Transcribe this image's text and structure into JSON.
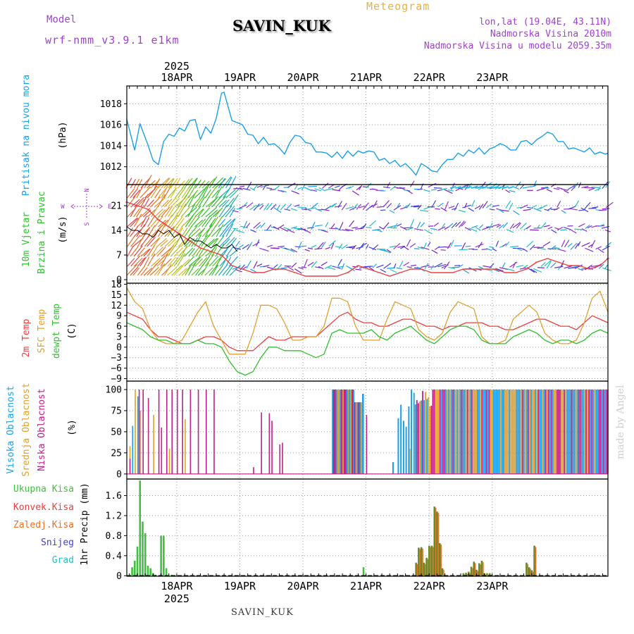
{
  "header": {
    "model_label": "Model",
    "model_name": "wrf-nmm_v3.9.1 e1km",
    "title": "SAVIN_KUK",
    "meteogram": "Meteogram",
    "lonlat": "lon,lat (19.04E, 43.11N)",
    "elevation": "Nadmorska Visina 2010m",
    "elevation_model": "Nadmorska Visina u modelu 2059.35m",
    "year": "2025"
  },
  "footer": {
    "station": "SAVIN_KUK",
    "year": "2025",
    "made_by": "made by Angel"
  },
  "days": [
    "18APR",
    "19APR",
    "20APR",
    "21APR",
    "22APR",
    "23APR"
  ],
  "colors": {
    "pressure": "#1aa0e8",
    "temp2m": "#e84040",
    "sfc": "#e0a030",
    "dewpt": "#30c030",
    "high_cloud": "#1aa0e8",
    "mid_cloud": "#e0a030",
    "low_cloud": "#c0208a",
    "total_precip": "#40c040",
    "conv_precip": "#e84040",
    "frozen": "#e87020",
    "snow": "#4040d0",
    "hail": "#20c0c0"
  },
  "legend": {
    "pressure": [
      "Pritisak na nivou mora",
      "(hPa)"
    ],
    "wind": [
      "10m Vjetar",
      "Brzina i Pravac",
      "(m/s)"
    ],
    "compass": [
      "N",
      "S",
      "W",
      "E"
    ],
    "temp": [
      "2m Temp",
      "SFC Temp",
      "dewpt Temp",
      "(C)"
    ],
    "cloud": [
      "Visoka Oblacnost",
      "Srednja Oblacnost",
      "Niska Oblacnost",
      "(%)"
    ],
    "precip": [
      "Ukupna Kisa",
      "Konvek.Kisa",
      "Zaledj.Kisa",
      "Snijeg",
      "Grad",
      "1hr Precip (mm)"
    ]
  },
  "chart_data": [
    {
      "type": "line",
      "panel": "pressure",
      "ylabel": "(hPa)",
      "yticks": [
        1012,
        1014,
        1016,
        1018
      ],
      "ylim": [
        1010.3,
        1019.7
      ],
      "x_hours": [
        0,
        3,
        5,
        8,
        10,
        12,
        14,
        16,
        18,
        20,
        22,
        24,
        26,
        28,
        30,
        32,
        34,
        36,
        37,
        38,
        40,
        42,
        44,
        46,
        48,
        50,
        52,
        54,
        56,
        58,
        60,
        62,
        64,
        66,
        68,
        70,
        72,
        74,
        76,
        78,
        80,
        82,
        84,
        86,
        88,
        90,
        92,
        94,
        96,
        98,
        100,
        102,
        104,
        106,
        108,
        110,
        112,
        114,
        116,
        118,
        120,
        122,
        124,
        126,
        128,
        130,
        132,
        134,
        136,
        138,
        140,
        142,
        144,
        146,
        148,
        150,
        152,
        154,
        156,
        158,
        160,
        162,
        164,
        166,
        168,
        170,
        172,
        174,
        176,
        178,
        180,
        182,
        183
      ],
      "values": [
        1016.5,
        1013.6,
        1016.1,
        1014.1,
        1012.6,
        1012.2,
        1014.4,
        1015.1,
        1014.9,
        1015.7,
        1015.4,
        1016.4,
        1016.5,
        1014.6,
        1015.8,
        1015.2,
        1016.6,
        1019.0,
        1019.1,
        1018.2,
        1016.4,
        1016.2,
        1016.0,
        1015.1,
        1015.0,
        1014.2,
        1014.8,
        1014.1,
        1014.2,
        1013.8,
        1013.2,
        1014.3,
        1015.0,
        1014.9,
        1014.3,
        1014.2,
        1013.4,
        1013.4,
        1013.3,
        1012.9,
        1013.4,
        1012.8,
        1013.5,
        1013.0,
        1013.5,
        1013.3,
        1013.5,
        1013.4,
        1012.6,
        1012.8,
        1012.3,
        1012.6,
        1012.0,
        1012.3,
        1011.8,
        1011.2,
        1012.3,
        1012.0,
        1011.6,
        1011.5,
        1012.2,
        1012.7,
        1012.7,
        1013.3,
        1013.0,
        1013.6,
        1013.3,
        1013.8,
        1013.2,
        1013.7,
        1013.9,
        1014.2,
        1014.0,
        1013.6,
        1013.6,
        1014.4,
        1014.5,
        1014.1,
        1014.6,
        1014.9,
        1015.3,
        1015.1,
        1014.4,
        1014.4,
        1013.7,
        1013.8,
        1013.6,
        1013.4,
        1013.8,
        1013.2,
        1013.4,
        1013.2,
        1013.3
      ],
      "color": "#1aa0e8"
    },
    {
      "type": "line",
      "panel": "wind",
      "ylabel": "(m/s)",
      "yticks": [
        0,
        7,
        14,
        21
      ],
      "ylim": [
        -1,
        27
      ],
      "series": [
        {
          "name": "",
          "color": "#e84040",
          "x_hours": [
            0,
            4,
            8,
            12,
            16,
            20,
            24,
            28,
            32,
            36,
            40,
            44,
            48,
            52,
            56,
            60,
            64,
            68,
            72,
            76,
            80,
            84,
            88,
            92,
            96,
            100,
            104,
            108,
            112,
            116,
            120,
            124,
            128,
            132,
            136,
            140,
            144,
            148,
            152,
            156,
            160,
            164,
            168,
            172,
            176,
            180,
            183
          ],
          "values": [
            22,
            21,
            20,
            17,
            15,
            13,
            11,
            9,
            8,
            7,
            4,
            3,
            2,
            2,
            3,
            3,
            2,
            1,
            1,
            1,
            1,
            2,
            4,
            3,
            2,
            1,
            2,
            3,
            3,
            2,
            2,
            2,
            3,
            3,
            3,
            3,
            2,
            2,
            3,
            5,
            6,
            5,
            4,
            4,
            3,
            4,
            6
          ]
        },
        {
          "name": "",
          "color": "#000000",
          "x_hours": [
            0,
            2,
            4,
            6,
            8,
            10,
            12,
            14,
            16,
            18,
            20,
            22,
            24,
            26,
            28,
            30,
            32,
            34,
            36,
            38,
            40,
            42
          ],
          "values": [
            15,
            14,
            14,
            13,
            13,
            12,
            14,
            13,
            14,
            12,
            13,
            10,
            12,
            11,
            11,
            10,
            9,
            10,
            9,
            9,
            10,
            8
          ]
        }
      ]
    },
    {
      "type": "line",
      "panel": "temperature",
      "ylabel": "(C)",
      "yticks": [
        -9,
        -6,
        -3,
        0,
        3,
        6,
        9,
        12,
        15,
        18
      ],
      "ylim": [
        -9.7,
        18.3
      ],
      "series": [
        {
          "name": "2m Temp",
          "color": "#e84040",
          "x_hours": [
            0,
            3,
            6,
            9,
            12,
            15,
            18,
            21,
            24,
            27,
            30,
            33,
            36,
            39,
            42,
            45,
            48,
            51,
            54,
            57,
            60,
            63,
            66,
            69,
            72,
            75,
            78,
            81,
            84,
            87,
            90,
            93,
            96,
            99,
            102,
            105,
            108,
            111,
            114,
            117,
            120,
            123,
            126,
            129,
            132,
            135,
            138,
            141,
            144,
            147,
            150,
            153,
            156,
            159,
            162,
            165,
            168,
            171,
            174,
            177,
            180,
            183
          ],
          "values": [
            10,
            9,
            8,
            5,
            3,
            3,
            2,
            1,
            1,
            2,
            3,
            3,
            2,
            0,
            -1,
            -1,
            -1,
            1,
            3,
            2,
            2,
            3,
            3,
            3,
            3,
            5,
            7,
            9,
            10,
            8,
            7,
            7,
            6,
            6,
            7,
            8,
            8,
            7,
            6,
            6,
            5,
            6,
            6,
            7,
            7,
            7,
            6,
            6,
            5,
            5,
            6,
            7,
            8,
            8,
            7,
            6,
            6,
            5,
            7,
            9,
            8,
            7
          ]
        },
        {
          "name": "SFC Temp",
          "color": "#e0a030",
          "x_hours": [
            0,
            3,
            6,
            9,
            12,
            15,
            18,
            21,
            24,
            27,
            30,
            33,
            36,
            39,
            42,
            45,
            48,
            51,
            54,
            57,
            60,
            63,
            66,
            69,
            72,
            75,
            78,
            81,
            84,
            87,
            90,
            93,
            96,
            99,
            102,
            105,
            108,
            111,
            114,
            117,
            120,
            123,
            126,
            129,
            132,
            135,
            138,
            141,
            144,
            147,
            150,
            153,
            156,
            159,
            162,
            165,
            168,
            171,
            174,
            177,
            180,
            183
          ],
          "values": [
            17,
            13,
            11,
            5,
            2,
            1,
            1,
            2,
            6,
            10,
            13,
            6,
            2,
            -2,
            -2,
            -2,
            4,
            12,
            12,
            11,
            7,
            2,
            2,
            3,
            3,
            6,
            14,
            14,
            13,
            6,
            2,
            2,
            2,
            8,
            13,
            12,
            11,
            5,
            3,
            2,
            4,
            10,
            13,
            12,
            11,
            3,
            1,
            1,
            2,
            8,
            10,
            12,
            10,
            4,
            2,
            1,
            1,
            2,
            7,
            14,
            16,
            10
          ]
        },
        {
          "name": "dewpt Temp",
          "color": "#30c030",
          "x_hours": [
            0,
            3,
            6,
            9,
            12,
            15,
            18,
            21,
            24,
            27,
            30,
            33,
            36,
            39,
            42,
            45,
            48,
            51,
            54,
            57,
            60,
            63,
            66,
            69,
            72,
            75,
            78,
            81,
            84,
            87,
            90,
            93,
            96,
            99,
            102,
            105,
            108,
            111,
            114,
            117,
            120,
            123,
            126,
            129,
            132,
            135,
            138,
            141,
            144,
            147,
            150,
            153,
            156,
            159,
            162,
            165,
            168,
            171,
            174,
            177,
            180,
            183
          ],
          "values": [
            7,
            6,
            5,
            3,
            2,
            2,
            1,
            1,
            1,
            2,
            1,
            1,
            0,
            -4,
            -7,
            -8,
            -7,
            -3,
            0,
            0,
            -1,
            -1,
            -1,
            -2,
            -3,
            -2,
            4,
            5,
            4,
            4,
            4,
            5,
            3,
            2,
            4,
            5,
            6,
            4,
            2,
            1,
            3,
            5,
            6,
            6,
            5,
            2,
            1,
            1,
            1,
            3,
            4,
            5,
            4,
            2,
            1,
            2,
            2,
            1,
            2,
            4,
            5,
            4
          ]
        }
      ]
    },
    {
      "type": "bar",
      "panel": "clouds",
      "ylabel": "(%)",
      "yticks": [
        0,
        25,
        50,
        75,
        100
      ],
      "ylim": [
        -6,
        110
      ],
      "series": [
        {
          "name": "Visoka Oblacnost",
          "color": "#1aa0e8"
        },
        {
          "name": "Srednja Oblacnost",
          "color": "#e0a030"
        },
        {
          "name": "Niska Oblacnost",
          "color": "#c0208a"
        }
      ]
    },
    {
      "type": "bar",
      "panel": "precipitation",
      "ylabel": "1hr Precip (mm)",
      "yticks": [
        0,
        0.4,
        0.8,
        1.2,
        1.6
      ],
      "ylim": [
        -0.01,
        1.93
      ],
      "series": [
        {
          "name": "Ukupna Kisa",
          "color": "#40c040",
          "x_hours": [
            2,
            3,
            4,
            5,
            6,
            7,
            8,
            9,
            10,
            11,
            13,
            14,
            15,
            17,
            90,
            110,
            111,
            112,
            113,
            114,
            115,
            116,
            117,
            118,
            119,
            120,
            128,
            129,
            130,
            131,
            132,
            133,
            134,
            135,
            136,
            137,
            138,
            152,
            153,
            154,
            155
          ],
          "values": [
            0.17,
            0.3,
            0.58,
            1.9,
            1.08,
            0.85,
            0.2,
            0.15,
            0.05,
            0.02,
            0.8,
            0.8,
            0.15,
            0.02,
            0.17,
            0.26,
            0.56,
            0.57,
            0.26,
            0.36,
            0.6,
            0.6,
            1.38,
            1.28,
            0.65,
            0.15,
            0.05,
            0.06,
            0.08,
            0.18,
            0.28,
            0.12,
            0.25,
            0.3,
            0.05,
            0.05,
            0.05,
            0.26,
            0.17,
            0.11,
            0.6
          ]
        },
        {
          "name": "Konvek.Kisa",
          "color": "#e84040",
          "values": []
        },
        {
          "name": "Zaledj.Kisa",
          "color": "#e87020",
          "values": []
        },
        {
          "name": "Snijeg",
          "color": "#4040d0",
          "values": []
        },
        {
          "name": "Grad",
          "color": "#20c0c0",
          "values": []
        }
      ]
    }
  ]
}
